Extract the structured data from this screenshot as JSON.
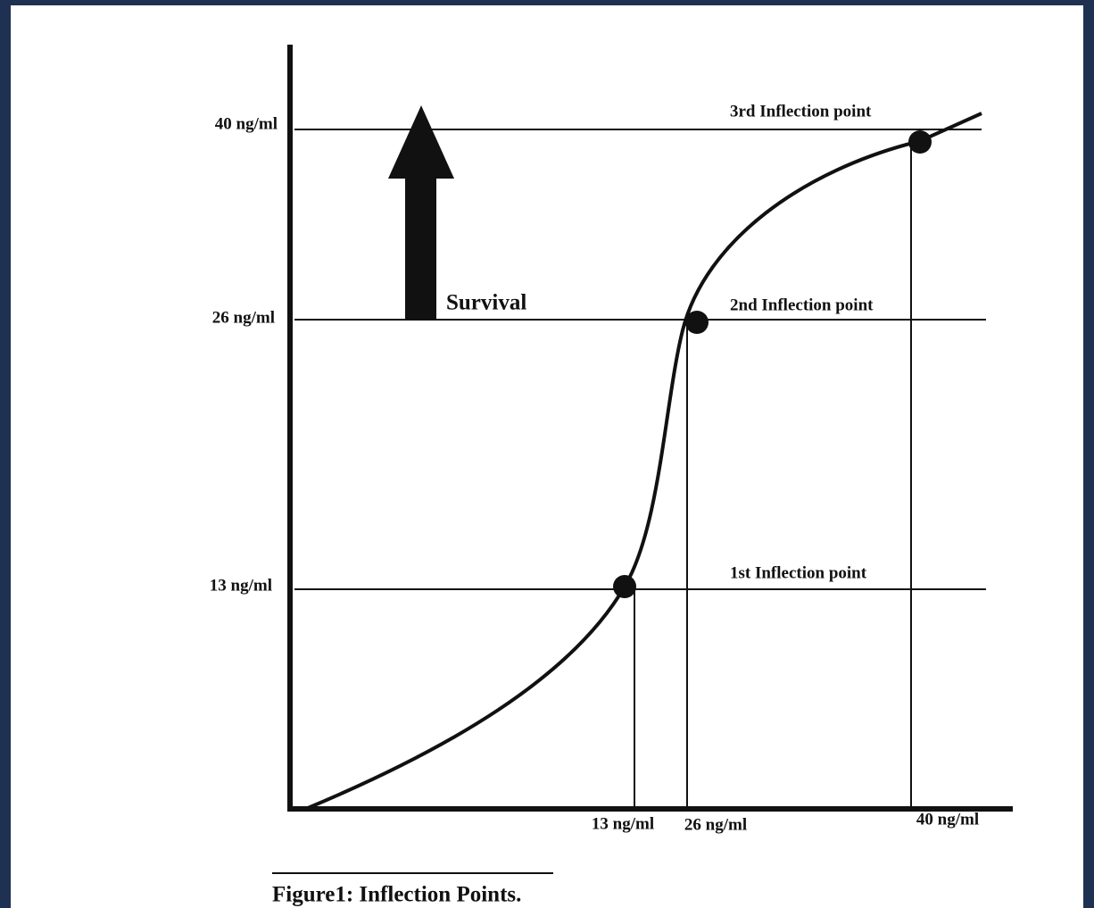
{
  "y_labels": [
    "40 ng/ml",
    "26 ng/ml",
    "13 ng/ml"
  ],
  "x_labels": [
    "13 ng/ml",
    "26 ng/ml",
    "40 ng/ml"
  ],
  "points": [
    "3rd Inflection point",
    "2nd Inflection point",
    "1st Inflection point"
  ],
  "arrow_label": "Survival",
  "caption": "Figure1: Inflection Points."
}
